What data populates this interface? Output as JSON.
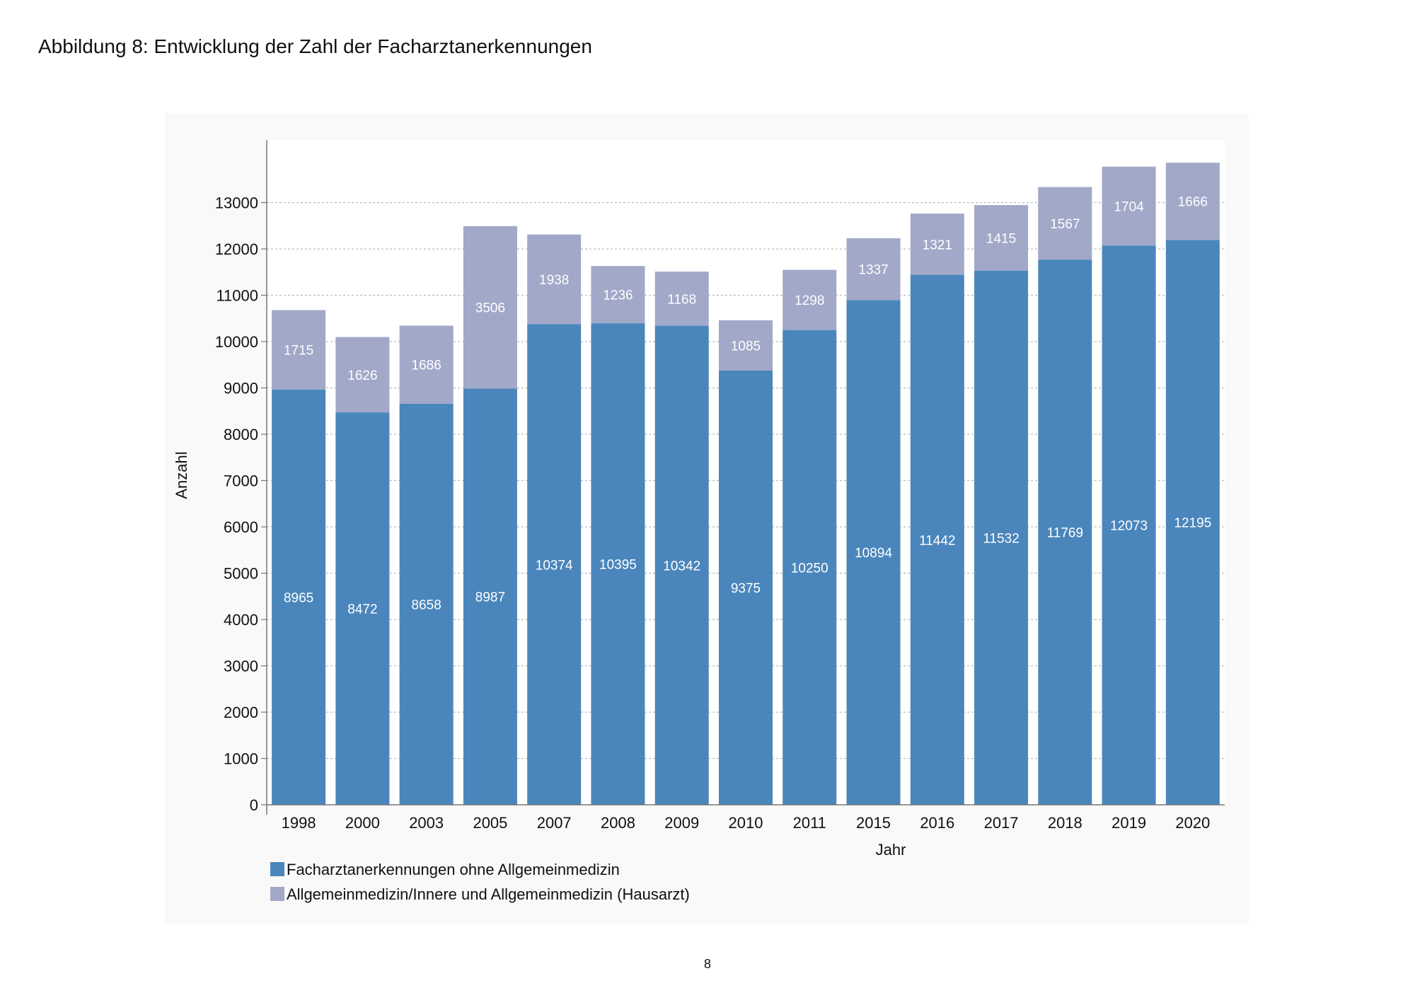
{
  "page": {
    "title": "Abbildung 8: Entwicklung der Zahl der Facharztanerkennungen",
    "page_number": "8"
  },
  "chart_data": {
    "type": "bar",
    "stacked": true,
    "categories": [
      "1998",
      "2000",
      "2003",
      "2005",
      "2007",
      "2008",
      "2009",
      "2010",
      "2011",
      "2015",
      "2016",
      "2017",
      "2018",
      "2019",
      "2020"
    ],
    "series": [
      {
        "name": "Facharztanerkennungen ohne Allgemeinmedizin",
        "color": "#4a86bc",
        "values": [
          8965,
          8472,
          8658,
          8987,
          10374,
          10395,
          10342,
          9375,
          10250,
          10894,
          11442,
          11532,
          11769,
          12073,
          12195
        ]
      },
      {
        "name": "Allgemeinmedizin/Innere und Allgemeinmedizin (Hausarzt)",
        "color": "#a1a8c8",
        "values": [
          1715,
          1626,
          1686,
          3506,
          1938,
          1236,
          1168,
          1085,
          1298,
          1337,
          1321,
          1415,
          1567,
          1704,
          1666
        ]
      }
    ],
    "xlabel": "Jahr",
    "ylabel": "Anzahl",
    "ylim": [
      0,
      14000
    ],
    "yticks": [
      0,
      1000,
      2000,
      3000,
      4000,
      5000,
      6000,
      7000,
      8000,
      9000,
      10000,
      11000,
      12000,
      13000
    ],
    "grid": true,
    "legend": "bottom-left"
  }
}
